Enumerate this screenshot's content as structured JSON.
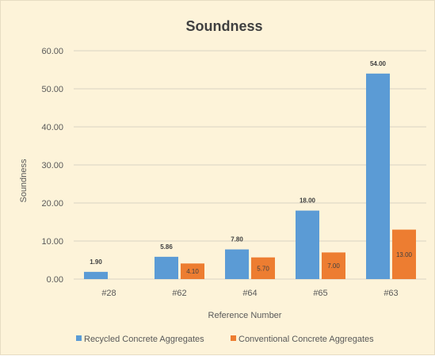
{
  "chart_data": {
    "type": "bar",
    "title": "Soundness",
    "xlabel": "Reference Number",
    "ylabel": "Soundness",
    "categories": [
      "#28",
      "#62",
      "#64",
      "#65",
      "#63"
    ],
    "series": [
      {
        "name": "Recycled Concrete Aggregates",
        "color": "#5b9bd5",
        "values": [
          1.9,
          5.86,
          7.8,
          18.0,
          54.0
        ],
        "labels": [
          "1.90",
          "5.86",
          "7.80",
          "18.00",
          "54.00"
        ]
      },
      {
        "name": "Conventional Concrete Aggregates",
        "color": "#ed7d31",
        "values": [
          null,
          4.1,
          5.7,
          7.0,
          13.0
        ],
        "labels": [
          "",
          "4.10",
          "5.70",
          "7.00",
          "13.00"
        ]
      }
    ],
    "ylim": [
      0,
      60
    ],
    "yticks": [
      "0.00",
      "10.00",
      "20.00",
      "30.00",
      "40.00",
      "50.00",
      "60.00"
    ],
    "grid": true,
    "legend": "bottom",
    "background": "#fdf3d9"
  }
}
